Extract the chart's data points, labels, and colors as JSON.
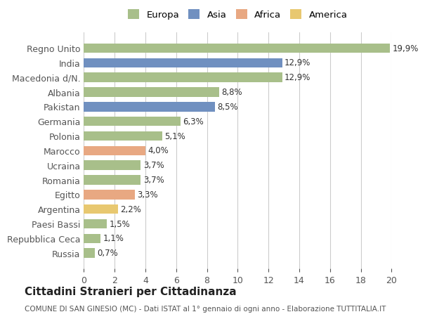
{
  "categories": [
    "Regno Unito",
    "India",
    "Macedonia d/N.",
    "Albania",
    "Pakistan",
    "Germania",
    "Polonia",
    "Marocco",
    "Ucraina",
    "Romania",
    "Egitto",
    "Argentina",
    "Paesi Bassi",
    "Repubblica Ceca",
    "Russia"
  ],
  "values": [
    19.9,
    12.9,
    12.9,
    8.8,
    8.5,
    6.3,
    5.1,
    4.0,
    3.7,
    3.7,
    3.3,
    2.2,
    1.5,
    1.1,
    0.7
  ],
  "labels": [
    "19,9%",
    "12,9%",
    "12,9%",
    "8,8%",
    "8,5%",
    "6,3%",
    "5,1%",
    "4,0%",
    "3,7%",
    "3,7%",
    "3,3%",
    "2,2%",
    "1,5%",
    "1,1%",
    "0,7%"
  ],
  "colors": [
    "#a8bf8a",
    "#7090c0",
    "#a8bf8a",
    "#a8bf8a",
    "#7090c0",
    "#a8bf8a",
    "#a8bf8a",
    "#e8a882",
    "#a8bf8a",
    "#a8bf8a",
    "#e8a882",
    "#e8c870",
    "#a8bf8a",
    "#a8bf8a",
    "#a8bf8a"
  ],
  "legend_labels": [
    "Europa",
    "Asia",
    "Africa",
    "America"
  ],
  "legend_colors": [
    "#a8bf8a",
    "#7090c0",
    "#e8a882",
    "#e8c870"
  ],
  "title": "Cittadini Stranieri per Cittadinanza",
  "subtitle": "COMUNE DI SAN GINESIO (MC) - Dati ISTAT al 1° gennaio di ogni anno - Elaborazione TUTTITALIA.IT",
  "xlim": [
    0,
    20
  ],
  "xticks": [
    0,
    2,
    4,
    6,
    8,
    10,
    12,
    14,
    16,
    18,
    20
  ],
  "background_color": "#ffffff",
  "grid_color": "#cccccc"
}
